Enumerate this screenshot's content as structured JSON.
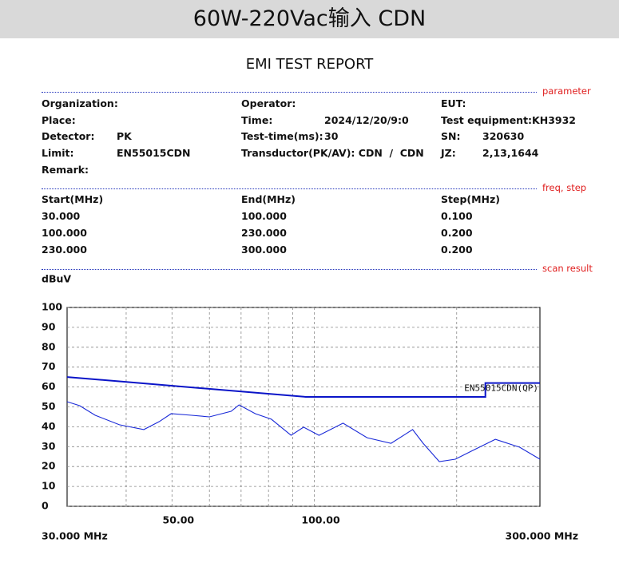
{
  "header": {
    "title": "60W-220Vac输入 CDN"
  },
  "report": {
    "title": "EMI TEST REPORT",
    "sections": [
      "parameter",
      "freq, step",
      "scan result"
    ],
    "fields": [
      [
        {
          "label": "Organization:"
        },
        {
          "label": "Operator:"
        },
        {
          "label": "EUT:"
        }
      ],
      [
        {
          "label": "Place:"
        },
        {
          "label": "Time:",
          "value": "2024/12/20/9:0"
        },
        {
          "label": "Test equipment:KH3932"
        }
      ],
      [
        {
          "label": "Detector:",
          "value": "PK"
        },
        {
          "label": "Test-time(ms):",
          "value": "30"
        },
        {
          "label": "SN:",
          "value": "320630"
        }
      ],
      [
        {
          "label": "Limit:",
          "value": "EN55015CDN"
        },
        {
          "label": "Transductor(PK/AV): CDN  /  CDN"
        },
        {
          "label": "JZ:",
          "value": "2,13,1644"
        }
      ],
      [
        {
          "label": "Remark:"
        }
      ]
    ],
    "steps": {
      "headers": [
        "Start(MHz)",
        "End(MHz)",
        "Step(MHz)"
      ],
      "rows": [
        [
          "30.000",
          "100.000",
          "0.100"
        ],
        [
          "100.000",
          "230.000",
          "0.200"
        ],
        [
          "230.000",
          "300.000",
          "0.200"
        ]
      ]
    }
  },
  "chart_data": {
    "type": "line",
    "y_label": "dBuV",
    "x_range_labels": [
      "30.000 MHz",
      "300.000 MHz"
    ],
    "xscale": "log",
    "xlim": [
      30,
      300
    ],
    "xticks": [
      {
        "value": 50,
        "label": "50.00"
      },
      {
        "value": 100,
        "label": "100.00"
      }
    ],
    "xgrid": [
      40,
      50,
      60,
      70,
      80,
      90,
      100,
      200
    ],
    "ylim": [
      0,
      100
    ],
    "yticks": [
      0,
      10,
      20,
      30,
      40,
      50,
      60,
      70,
      80,
      90,
      100
    ],
    "grid": true,
    "series": [
      {
        "name": "EN55015CDN(QP)",
        "color": "#0a14c8",
        "x": [
          30,
          96,
          230,
          230,
          300
        ],
        "values": [
          65,
          55,
          55,
          62,
          62
        ]
      },
      {
        "color": "#1a2ad8",
        "x": [
          30,
          31.9,
          34.4,
          38.7,
          43.6,
          47.0,
          49.8,
          55.0,
          60.0,
          66.7,
          69.3,
          75.0,
          81.1,
          89.3,
          94.9,
          102.3,
          115,
          129.3,
          145.3,
          161.4,
          169.9,
          183.8,
          198.7,
          214.7,
          241.5,
          271.8,
          300
        ],
        "values": [
          52.6,
          50.6,
          45.8,
          41.0,
          38.6,
          42.6,
          46.6,
          45.8,
          45.0,
          47.8,
          51.0,
          46.6,
          43.8,
          35.7,
          39.8,
          35.7,
          41.8,
          34.5,
          31.7,
          38.6,
          31.7,
          22.5,
          23.7,
          27.7,
          33.7,
          29.7,
          23.7
        ]
      }
    ]
  }
}
